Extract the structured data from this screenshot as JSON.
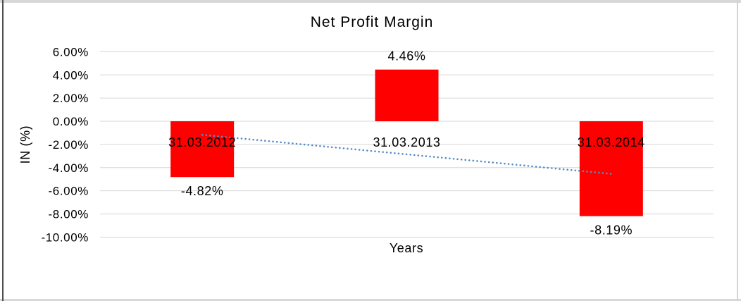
{
  "chart_data": {
    "type": "bar",
    "title": "Net Profit Margin",
    "xlabel": "Years",
    "ylabel": "IN (%)",
    "categories": [
      "31.03.2012",
      "31.03.2013",
      "31.03.2014"
    ],
    "values": [
      -4.82,
      4.46,
      -8.19
    ],
    "data_labels": [
      "-4.82%",
      "4.46%",
      "-8.19%"
    ],
    "y_ticks": [
      {
        "value": 6,
        "label": "6.00%"
      },
      {
        "value": 4,
        "label": "4.00%"
      },
      {
        "value": 2,
        "label": "2.00%"
      },
      {
        "value": 0,
        "label": "0.00%"
      },
      {
        "value": -2,
        "label": "-2.00%"
      },
      {
        "value": -4,
        "label": "-4.00%"
      },
      {
        "value": -6,
        "label": "-6.00%"
      },
      {
        "value": -8,
        "label": "-8.00%"
      },
      {
        "value": -10,
        "label": "-10.00%"
      }
    ],
    "ylim": [
      -10,
      6
    ],
    "grid": true,
    "legend": false,
    "bar_color": "#FF0000",
    "gridline_color": "#D6D6D6",
    "text_color": "#000000",
    "trendline": {
      "style": "dotted",
      "color": "#558CC8",
      "start": {
        "category_index": 0,
        "value": -1.17
      },
      "end": {
        "category_index": 2,
        "value": -4.54
      }
    }
  }
}
